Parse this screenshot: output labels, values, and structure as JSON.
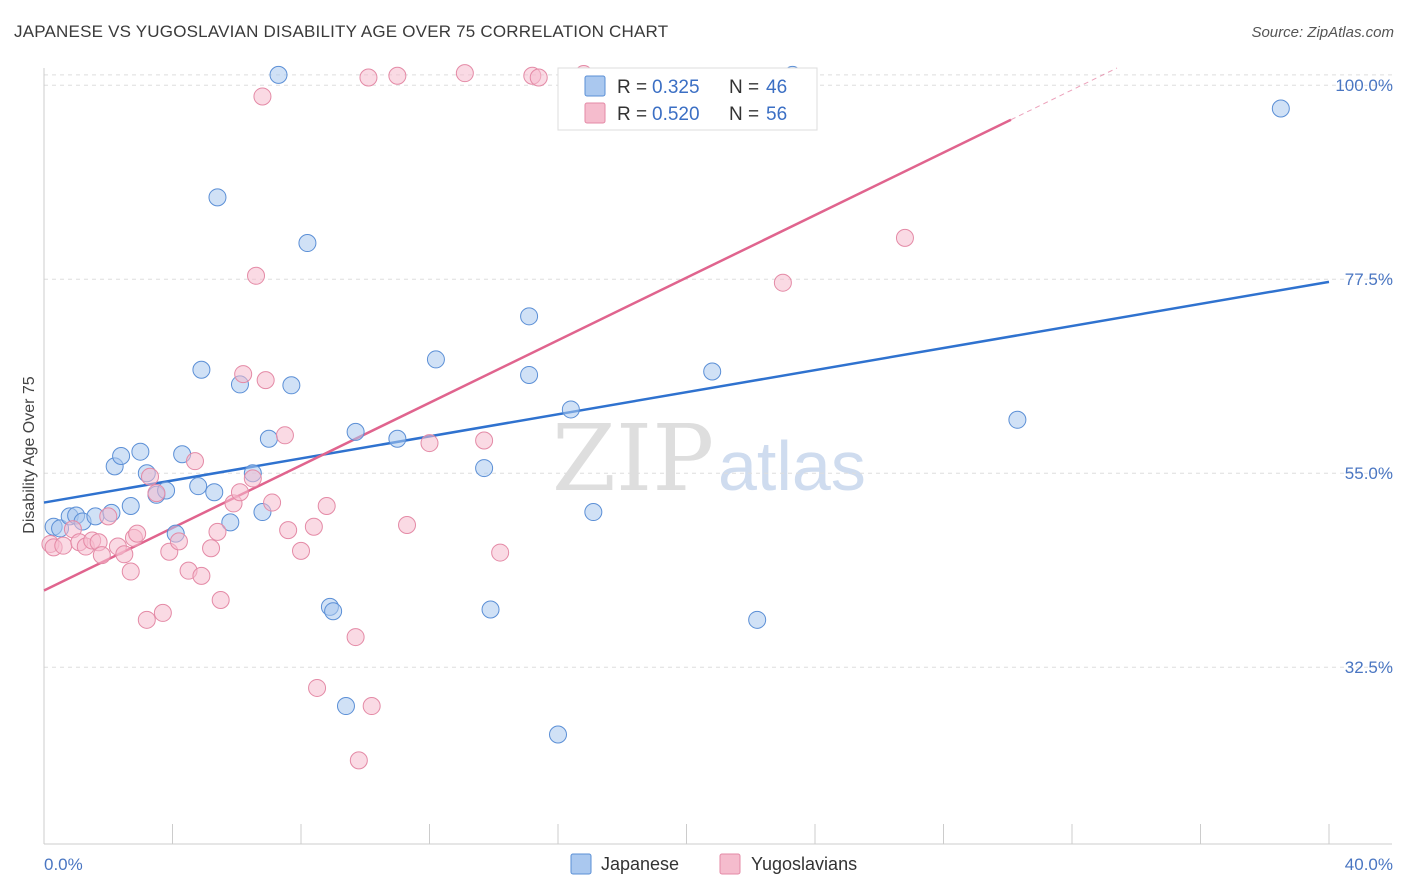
{
  "header": {
    "title": "JAPANESE VS YUGOSLAVIAN DISABILITY AGE OVER 75 CORRELATION CHART",
    "source": "Source: ZipAtlas.com"
  },
  "watermark": {
    "zip": "ZIP",
    "atlas": "atlas"
  },
  "colors": {
    "japanese_fill": "#aac8ef",
    "japanese_stroke": "#5b8fd6",
    "japanese_line": "#2f72cf",
    "yugoslav_fill": "#f5bccd",
    "yugoslav_stroke": "#e48aa6",
    "yugoslav_line": "#e0648e",
    "grid": "#dddddd",
    "tick_text": "#4a76c2"
  },
  "legend": {
    "rows": [
      {
        "r_label": "R = ",
        "r_value": "0.325",
        "n_label": "N = ",
        "n_value": "46"
      },
      {
        "r_label": "R = ",
        "r_value": "0.520",
        "n_label": "N = ",
        "n_value": "56"
      }
    ]
  },
  "chart_data": {
    "type": "scatter",
    "title": "JAPANESE VS YUGOSLAVIAN DISABILITY AGE OVER 75 CORRELATION CHART",
    "xlabel": "",
    "ylabel": "Disability Age Over 75",
    "xlim": [
      0,
      40
    ],
    "ylim": [
      12,
      102
    ],
    "x_tick_labels": [
      {
        "value": 0,
        "label": "0.0%"
      },
      {
        "value": 40,
        "label": "40.0%"
      }
    ],
    "x_minor_ticks": [
      4,
      8,
      12,
      16,
      20,
      24,
      28,
      32,
      36,
      40
    ],
    "y_ticks": [
      {
        "value": 32.5,
        "label": "32.5%"
      },
      {
        "value": 55.0,
        "label": "55.0%"
      },
      {
        "value": 77.5,
        "label": "77.5%"
      },
      {
        "value": 100.0,
        "label": "100.0%"
      }
    ],
    "series": [
      {
        "name": "Japanese",
        "R": 0.325,
        "N": 46,
        "trend": {
          "x": [
            0,
            40
          ],
          "y": [
            51.6,
            77.2
          ]
        },
        "points": [
          [
            0.3,
            48.8
          ],
          [
            0.5,
            48.6
          ],
          [
            0.8,
            50.0
          ],
          [
            1.0,
            50.1
          ],
          [
            1.2,
            49.4
          ],
          [
            1.6,
            50.0
          ],
          [
            2.1,
            50.4
          ],
          [
            2.2,
            55.8
          ],
          [
            2.4,
            57.0
          ],
          [
            2.7,
            51.2
          ],
          [
            3.0,
            57.5
          ],
          [
            3.2,
            55.0
          ],
          [
            3.5,
            52.5
          ],
          [
            3.8,
            53.0
          ],
          [
            4.1,
            48.0
          ],
          [
            4.3,
            57.2
          ],
          [
            4.8,
            53.5
          ],
          [
            4.9,
            67.0
          ],
          [
            5.3,
            52.8
          ],
          [
            5.4,
            87.0
          ],
          [
            5.8,
            49.3
          ],
          [
            6.1,
            65.3
          ],
          [
            6.5,
            55.0
          ],
          [
            6.8,
            50.5
          ],
          [
            7.0,
            59.0
          ],
          [
            7.3,
            101.2
          ],
          [
            7.7,
            65.2
          ],
          [
            8.2,
            81.7
          ],
          [
            8.9,
            39.5
          ],
          [
            9.0,
            39.0
          ],
          [
            9.4,
            28.0
          ],
          [
            9.7,
            59.8
          ],
          [
            11.0,
            59.0
          ],
          [
            12.2,
            68.2
          ],
          [
            13.7,
            55.6
          ],
          [
            13.9,
            39.2
          ],
          [
            15.1,
            73.2
          ],
          [
            15.1,
            66.4
          ],
          [
            16.0,
            24.7
          ],
          [
            16.4,
            62.4
          ],
          [
            17.1,
            50.5
          ],
          [
            20.8,
            66.8
          ],
          [
            22.2,
            38.0
          ],
          [
            23.3,
            101.2
          ],
          [
            30.3,
            61.2
          ],
          [
            38.5,
            97.3
          ]
        ]
      },
      {
        "name": "Yugoslavians",
        "R": 0.52,
        "N": 56,
        "trend": {
          "x": [
            0,
            30.1
          ],
          "y": [
            41.4,
            96.0
          ]
        },
        "trend_dashed": {
          "x": [
            30.1,
            33.4
          ],
          "y": [
            96.0,
            102.0
          ]
        },
        "points": [
          [
            0.2,
            46.8
          ],
          [
            0.3,
            46.4
          ],
          [
            0.6,
            46.6
          ],
          [
            0.9,
            48.5
          ],
          [
            1.1,
            47.0
          ],
          [
            1.3,
            46.5
          ],
          [
            1.5,
            47.2
          ],
          [
            1.7,
            47.0
          ],
          [
            1.8,
            45.5
          ],
          [
            2.0,
            50.0
          ],
          [
            2.3,
            46.5
          ],
          [
            2.5,
            45.6
          ],
          [
            2.7,
            43.6
          ],
          [
            2.8,
            47.5
          ],
          [
            2.9,
            48.0
          ],
          [
            3.2,
            38.0
          ],
          [
            3.3,
            54.6
          ],
          [
            3.5,
            52.7
          ],
          [
            3.7,
            38.8
          ],
          [
            3.9,
            45.9
          ],
          [
            4.2,
            47.1
          ],
          [
            4.5,
            43.7
          ],
          [
            4.7,
            56.4
          ],
          [
            4.9,
            43.1
          ],
          [
            5.2,
            46.3
          ],
          [
            5.4,
            48.2
          ],
          [
            5.5,
            40.3
          ],
          [
            5.9,
            51.5
          ],
          [
            6.1,
            52.8
          ],
          [
            6.2,
            66.5
          ],
          [
            6.5,
            54.4
          ],
          [
            6.6,
            77.9
          ],
          [
            6.8,
            98.7
          ],
          [
            6.9,
            65.8
          ],
          [
            7.1,
            51.6
          ],
          [
            7.5,
            59.4
          ],
          [
            7.6,
            48.4
          ],
          [
            8.0,
            46.0
          ],
          [
            8.4,
            48.8
          ],
          [
            8.5,
            30.1
          ],
          [
            8.8,
            51.2
          ],
          [
            9.7,
            36.0
          ],
          [
            9.8,
            21.7
          ],
          [
            10.2,
            28.0
          ],
          [
            11.0,
            101.1
          ],
          [
            11.3,
            49.0
          ],
          [
            12.0,
            58.5
          ],
          [
            13.1,
            101.4
          ],
          [
            13.7,
            58.8
          ],
          [
            14.2,
            45.8
          ],
          [
            15.2,
            101.1
          ],
          [
            15.4,
            100.9
          ],
          [
            16.8,
            101.3
          ],
          [
            23.0,
            77.1
          ],
          [
            26.8,
            82.3
          ],
          [
            10.1,
            100.9
          ]
        ]
      }
    ]
  },
  "bottom_legend": {
    "items": [
      {
        "label": "Japanese"
      },
      {
        "label": "Yugoslavians"
      }
    ]
  }
}
